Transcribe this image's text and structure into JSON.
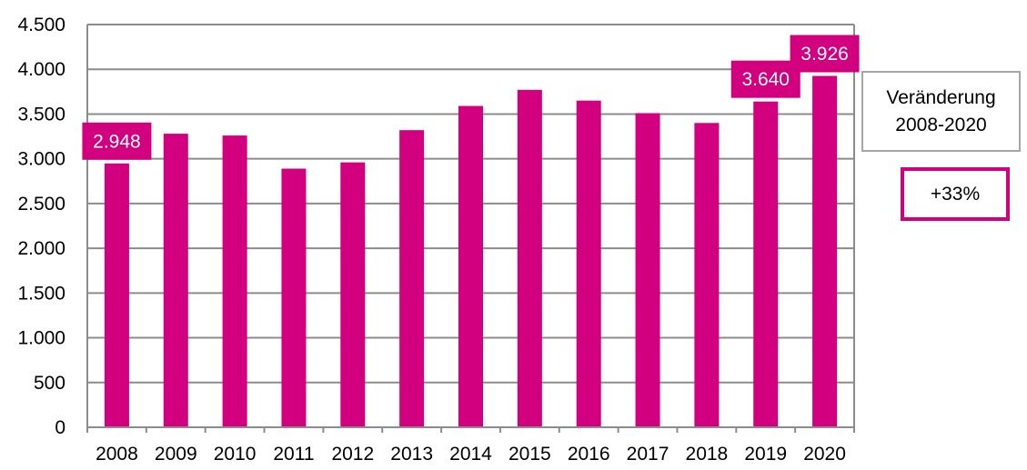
{
  "colors": {
    "bar": "#d2007f",
    "grid": "#8c8c8c",
    "axis": "#8c8c8c",
    "label_text": "#ffffff"
  },
  "chart_data": {
    "type": "bar",
    "categories": [
      "2008",
      "2009",
      "2010",
      "2011",
      "2012",
      "2013",
      "2014",
      "2015",
      "2016",
      "2017",
      "2018",
      "2019",
      "2020"
    ],
    "values": [
      2948,
      3280,
      3260,
      2890,
      2960,
      3320,
      3590,
      3770,
      3650,
      3510,
      3400,
      3640,
      3926
    ],
    "ylim": [
      0,
      4500
    ],
    "yticks": [
      0,
      500,
      1000,
      1500,
      2000,
      2500,
      3000,
      3500,
      4000,
      4500
    ],
    "ytick_labels": [
      "0",
      "500",
      "1.000",
      "1.500",
      "2.000",
      "2.500",
      "3.000",
      "3.500",
      "4.000",
      "4.500"
    ],
    "grid": true,
    "data_labels": [
      {
        "category": "2008",
        "text": "2.948"
      },
      {
        "category": "2019",
        "text": "3.640"
      },
      {
        "category": "2020",
        "text": "3.926"
      }
    ]
  },
  "change_box": {
    "line1": "Veränderung",
    "line2": "2008-2020",
    "value": "+33%"
  }
}
